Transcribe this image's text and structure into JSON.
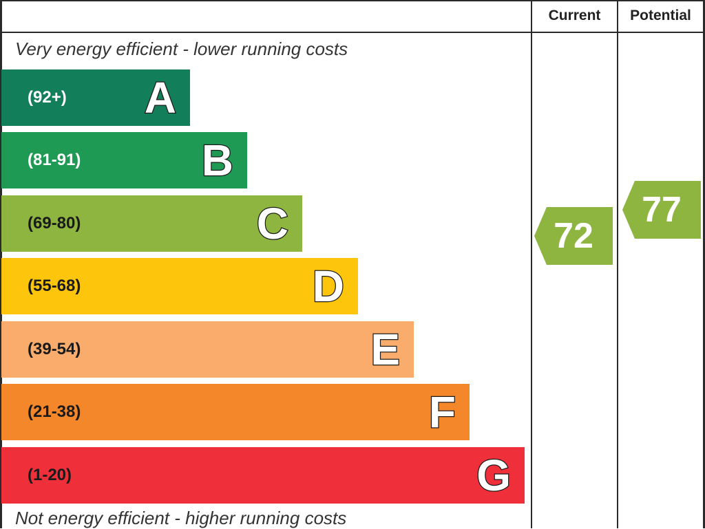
{
  "columns": {
    "current": "Current",
    "potential": "Potential"
  },
  "captions": {
    "top": "Very energy efficient - lower running costs",
    "bottom": "Not energy efficient - higher running costs"
  },
  "colors": {
    "A": "#137e5a",
    "B": "#1f9a55",
    "C": "#8db53f",
    "D": "#fdc50c",
    "E": "#f9ac6b",
    "F": "#f38729",
    "G": "#ef303b"
  },
  "chart_data": {
    "type": "bar",
    "categories": [
      "A",
      "B",
      "C",
      "D",
      "E",
      "F",
      "G"
    ],
    "ranges": [
      "(92+)",
      "(81-91)",
      "(69-80)",
      "(55-68)",
      "(39-54)",
      "(21-38)",
      "(1-20)"
    ],
    "current": {
      "value": "72",
      "band": "C"
    },
    "potential": {
      "value": "77",
      "band": "C"
    }
  }
}
